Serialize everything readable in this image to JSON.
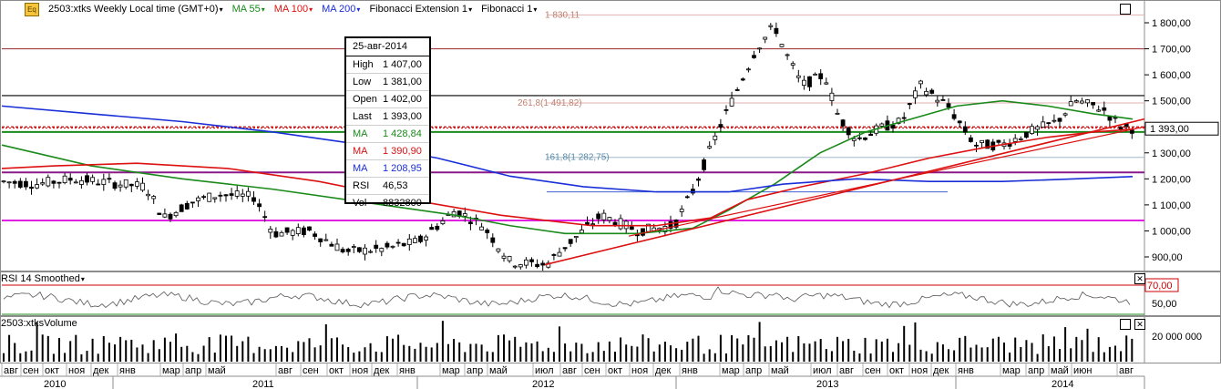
{
  "toolbar": {
    "symbol_label": "2503:xtks Weekly Local time (GMT+0)",
    "ma55": "MA 55",
    "ma100": "MA 100",
    "ma200": "MA 200",
    "fib_ext": "Fibonacci Extension 1",
    "fib": "Fibonacci 1",
    "eq_icon": "Eq"
  },
  "tooltip": {
    "date": "25-авг-2014",
    "rows": [
      {
        "label": "High",
        "value": "1 407,00",
        "color": "#000000"
      },
      {
        "label": "Low",
        "value": "1 381,00",
        "color": "#000000"
      },
      {
        "label": "Open",
        "value": "1 402,00",
        "color": "#000000"
      },
      {
        "label": "Last",
        "value": "1 393,00",
        "color": "#000000"
      },
      {
        "label": "MA",
        "value": "1 428,84",
        "color": "#1a8a1a"
      },
      {
        "label": "MA",
        "value": "1 390,90",
        "color": "#dd1111"
      },
      {
        "label": "MA",
        "value": "1 208,95",
        "color": "#1a2ed8"
      },
      {
        "label": "RSI",
        "value": "46,53",
        "color": "#000000"
      },
      {
        "label": "Vol",
        "value": "8832800",
        "color": "#000000"
      }
    ]
  },
  "rsi_panel": {
    "title": "RSI 14 Smoothed",
    "level_label": "70,00",
    "tick": "50,00"
  },
  "volume_panel": {
    "title": "2503:xtksVolume",
    "tick": "20 000 000"
  },
  "colors": {
    "ma55": "#1a8a1a",
    "ma100": "#dd1111",
    "ma200": "#1a2ed8",
    "magenta": "#e020e0",
    "purple": "#8a1a8a"
  },
  "chart_data": {
    "type": "candlestick",
    "price_axis": {
      "ticks": [
        "1 800,00",
        "1 700,00",
        "1 600,00",
        "1 500,00",
        "1 400,00",
        "1 300,00",
        "1 200,00",
        "1 100,00",
        "1 000,00",
        "900,00"
      ],
      "tick_values": [
        1800,
        1700,
        1600,
        1500,
        1400,
        1300,
        1200,
        1100,
        1000,
        900
      ],
      "last_label": "1 393,00",
      "last_value": 1393
    },
    "x_axis": {
      "months": [
        "авг",
        "сен",
        "окт",
        "ноя",
        "дек",
        "янв",
        "мар",
        "апр",
        "май",
        "авг",
        "сен",
        "окт",
        "ноя",
        "дек",
        "янв",
        "мар",
        "апр",
        "май",
        "июл",
        "авг",
        "сен",
        "окт",
        "ноя",
        "дек",
        "янв",
        "мар",
        "апр",
        "май",
        "июл",
        "авг",
        "сен",
        "окт",
        "ноя",
        "дек",
        "янв",
        "мар",
        "апр",
        "май",
        "июн",
        "авг"
      ],
      "years": [
        "2010",
        "2011",
        "2012",
        "2013",
        "2014"
      ]
    },
    "fibonacci": [
      {
        "label": "1 830,11",
        "value": 1830.11
      },
      {
        "label": "261,8(1 491,82)",
        "value": 1491.82
      },
      {
        "label": "161,8(1 282,75)",
        "value": 1282.75
      }
    ],
    "horizontal_levels": [
      {
        "value": 1700,
        "color": "#a04040"
      },
      {
        "value": 1520,
        "color": "#000000"
      },
      {
        "value": 1400,
        "color": "#cc0000"
      },
      {
        "value": 1380,
        "color": "#1a8a1a"
      },
      {
        "value": 1225,
        "color": "#8a1a8a"
      },
      {
        "value": 1040,
        "color": "#e020e0"
      }
    ],
    "rsi": {
      "levels": [
        70,
        30
      ]
    },
    "ohlc_summary": {
      "date": "25-авг-2014",
      "high": 1407,
      "low": 1381,
      "open": 1402,
      "close": 1393,
      "volume": 8832800,
      "rsi": 46.53,
      "ma55": 1428.84,
      "ma100": 1390.9,
      "ma200": 1208.95
    }
  }
}
